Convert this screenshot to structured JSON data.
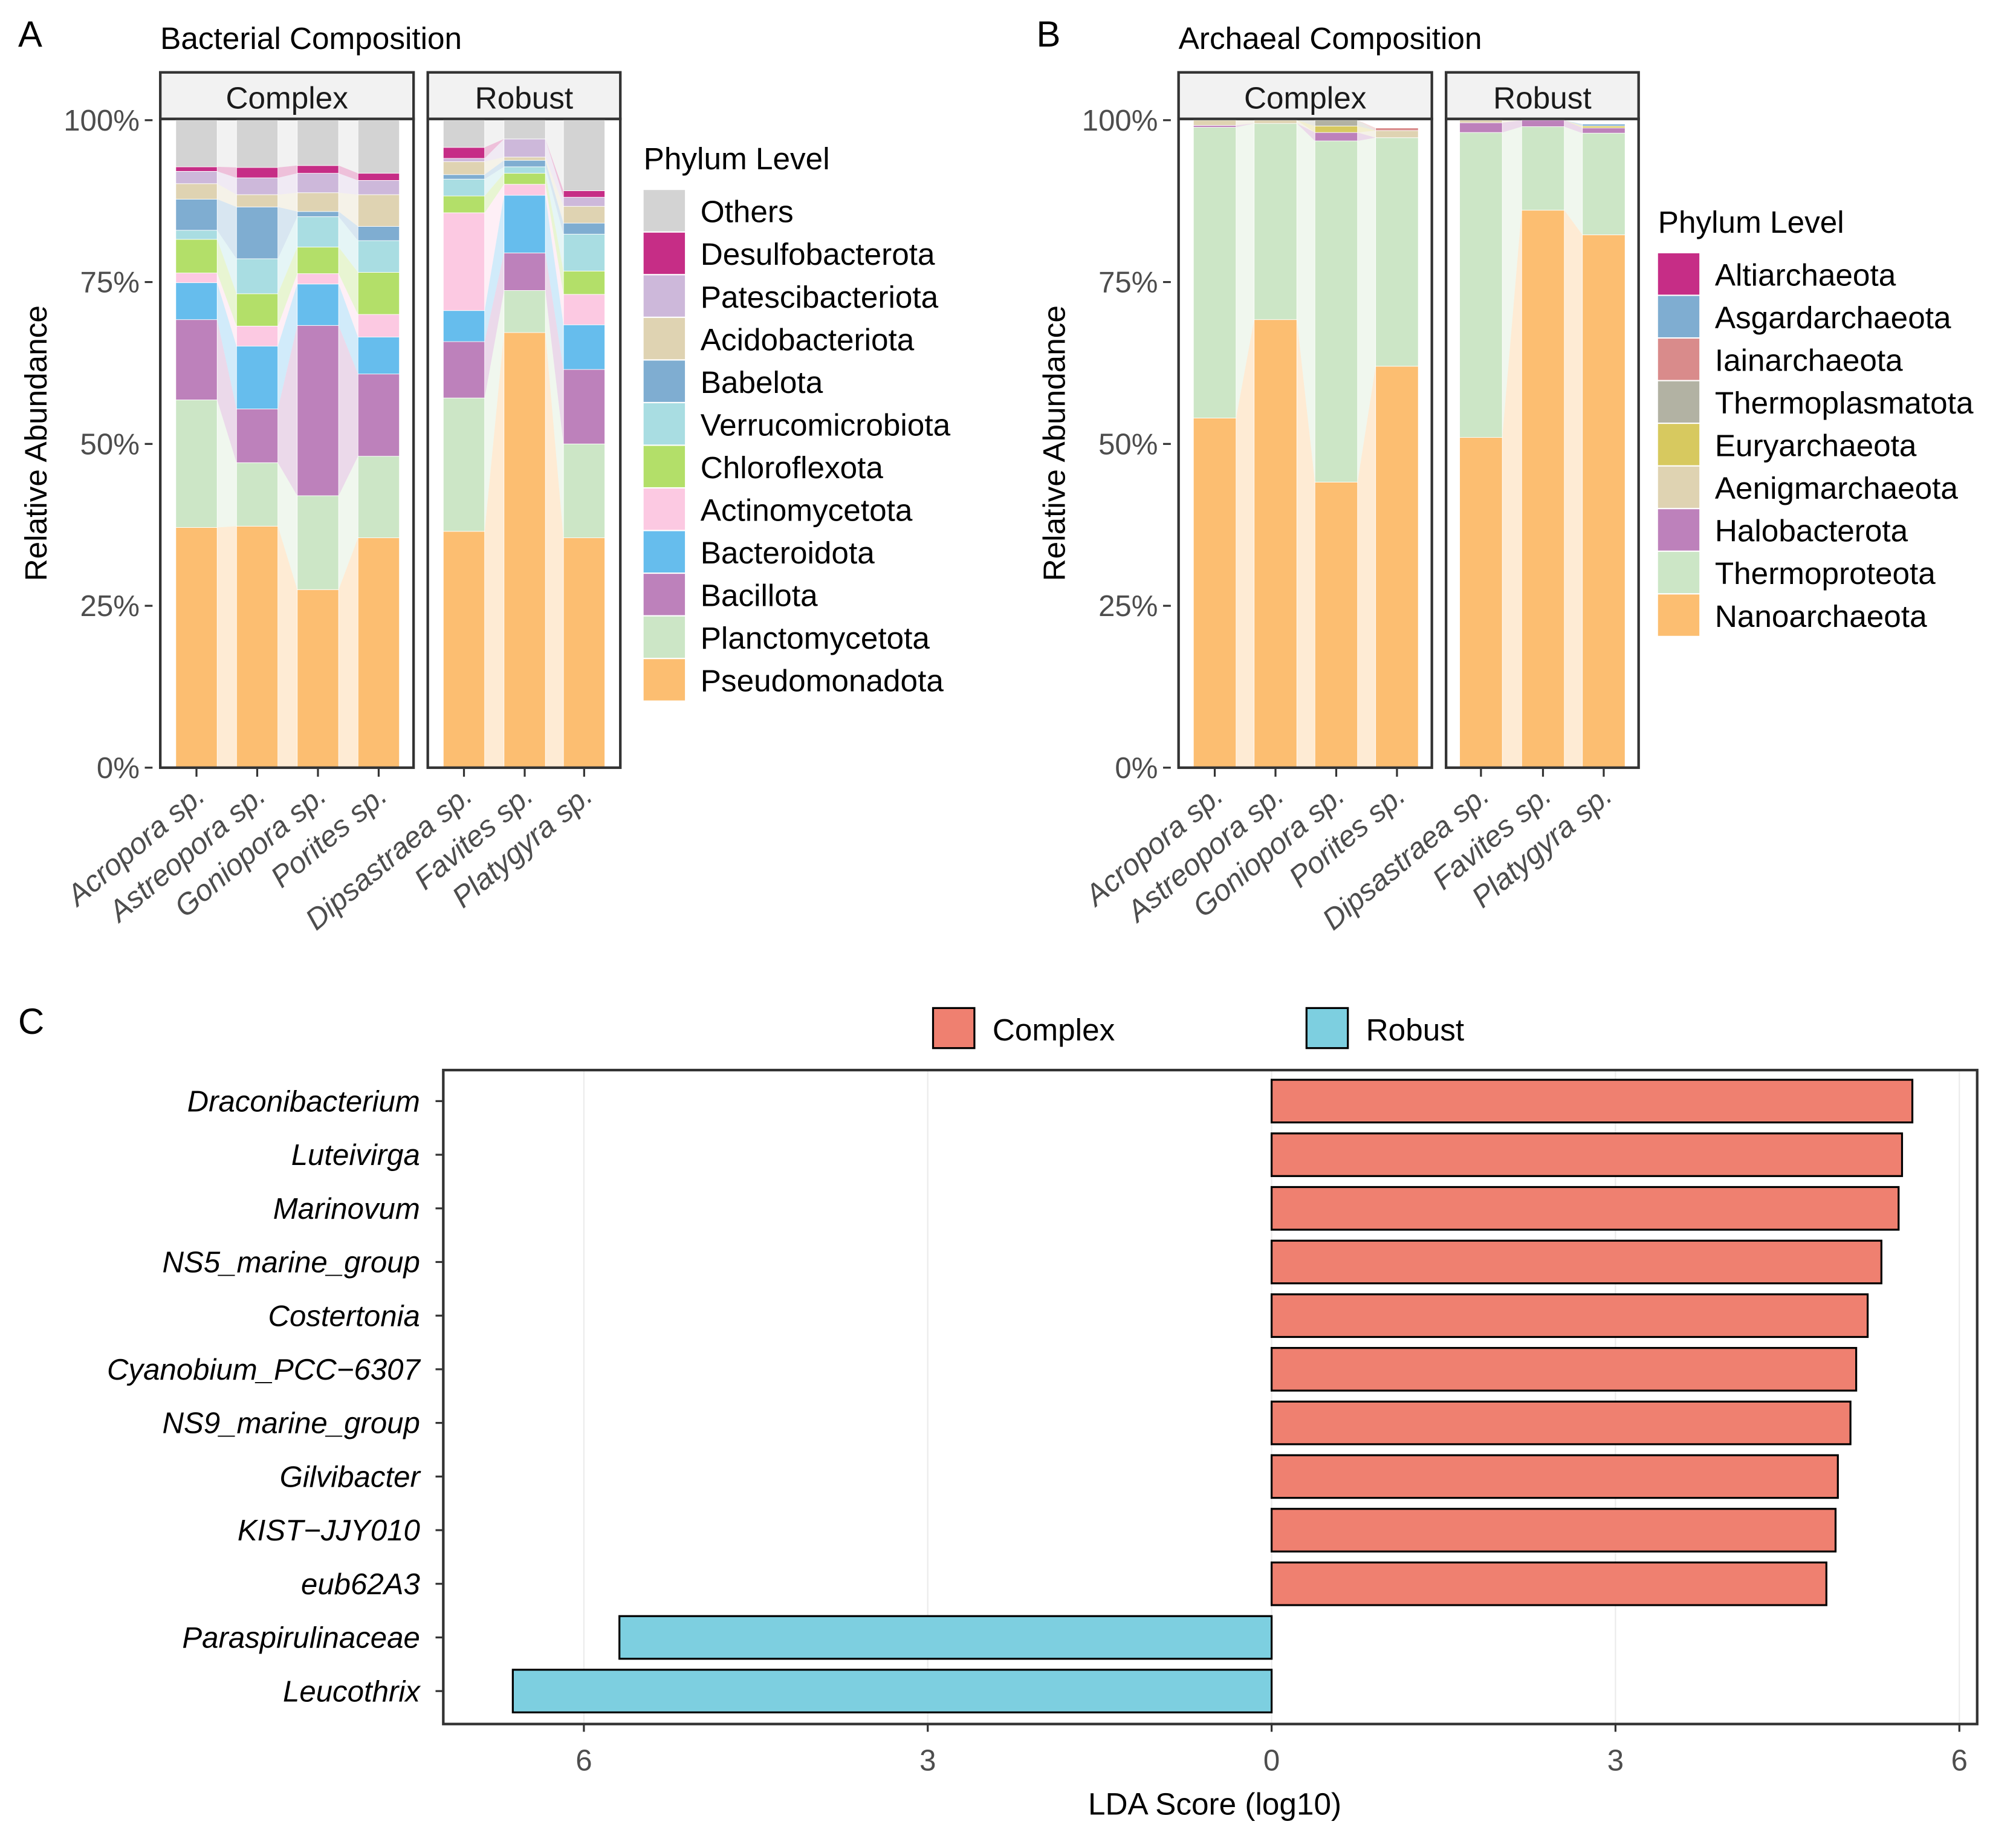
{
  "panel_labels": {
    "a": "A",
    "b": "B",
    "c": "C"
  },
  "chart_data": [
    {
      "type": "bar",
      "stacked": true,
      "alluvial_ribbons": true,
      "title": "Bacterial Composition",
      "ylabel": "Relative Abundance",
      "yticks": [
        "0%",
        "25%",
        "50%",
        "75%",
        "100%"
      ],
      "ylim": [
        0,
        100
      ],
      "facets": [
        {
          "name": "Complex",
          "categories": [
            "Acropora sp.",
            "Astreopora sp.",
            "Goniopora sp.",
            "Porites sp."
          ]
        },
        {
          "name": "Robust",
          "categories": [
            "Dipsastraea sp.",
            "Favites sp.",
            "Platygyra sp."
          ]
        }
      ],
      "legend_title": "Phylum Level",
      "legend_position": "right",
      "series": [
        {
          "name": "Pseudomonadota",
          "color": "#fcbe71",
          "values": [
            37.1,
            37.3,
            27.5,
            35.5,
            36.5,
            67.2,
            35.5
          ]
        },
        {
          "name": "Planctomycetota",
          "color": "#cce6c6",
          "values": [
            19.7,
            9.8,
            14.5,
            12.6,
            20.6,
            6.5,
            14.5
          ]
        },
        {
          "name": "Bacillota",
          "color": "#bd81bb",
          "values": [
            12.4,
            8.3,
            26.3,
            12.7,
            8.7,
            5.8,
            11.5
          ]
        },
        {
          "name": "Bacteroidota",
          "color": "#66bded",
          "values": [
            5.7,
            9.7,
            6.4,
            5.7,
            4.8,
            8.9,
            6.9
          ]
        },
        {
          "name": "Actinomycetota",
          "color": "#fcc9e2",
          "values": [
            1.5,
            3.1,
            1.6,
            3.5,
            15.1,
            1.7,
            4.7
          ]
        },
        {
          "name": "Chloroflexota",
          "color": "#b3df69",
          "values": [
            5.2,
            5.0,
            4.1,
            6.5,
            2.6,
            1.7,
            3.6
          ]
        },
        {
          "name": "Verrucomicrobiota",
          "color": "#a9dde2",
          "values": [
            1.4,
            5.4,
            4.7,
            4.9,
            2.6,
            1.0,
            5.7
          ]
        },
        {
          "name": "Babelota",
          "color": "#7fadd1",
          "values": [
            4.8,
            8.0,
            0.8,
            2.2,
            0.7,
            1.0,
            1.7
          ]
        },
        {
          "name": "Acidobacteriota",
          "color": "#dfd3b2",
          "values": [
            2.4,
            1.9,
            2.9,
            4.9,
            2.0,
            0.5,
            2.6
          ]
        },
        {
          "name": "Patescibacteriota",
          "color": "#cdb8da",
          "values": [
            1.9,
            2.6,
            3.0,
            2.2,
            0.5,
            2.8,
            1.4
          ]
        },
        {
          "name": "Desulfobacterota",
          "color": "#c62d86",
          "values": [
            0.7,
            1.6,
            1.2,
            1.1,
            1.7,
            0.0,
            1.0
          ]
        },
        {
          "name": "Others",
          "color": "#d3d3d3",
          "values": [
            7.2,
            7.3,
            7.0,
            8.2,
            4.2,
            2.9,
            10.9
          ]
        }
      ]
    },
    {
      "type": "bar",
      "stacked": true,
      "alluvial_ribbons": true,
      "title": "Archaeal Composition",
      "ylabel": "Relative Abundance",
      "yticks": [
        "0%",
        "25%",
        "50%",
        "75%",
        "100%"
      ],
      "ylim": [
        0,
        100
      ],
      "facets": [
        {
          "name": "Complex",
          "categories": [
            "Acropora sp.",
            "Astreopora sp.",
            "Goniopora sp.",
            "Porites sp."
          ]
        },
        {
          "name": "Robust",
          "categories": [
            "Dipsastraea sp.",
            "Favites sp.",
            "Platygyra sp."
          ]
        }
      ],
      "legend_title": "Phylum Level",
      "legend_position": "right",
      "series": [
        {
          "name": "Nanoarchaeota",
          "color": "#fcbe71",
          "values": [
            54.0,
            69.2,
            44.1,
            62.0,
            51.0,
            86.1,
            82.3
          ]
        },
        {
          "name": "Thermoproteota",
          "color": "#cce6c6",
          "values": [
            44.9,
            30.3,
            52.7,
            35.3,
            47.1,
            12.9,
            15.7
          ]
        },
        {
          "name": "Halobacterota",
          "color": "#bd81bb",
          "values": [
            0.3,
            0.0,
            1.3,
            0.0,
            1.5,
            1.0,
            0.8
          ]
        },
        {
          "name": "Aenigmarchaeota",
          "color": "#dfd3b2",
          "values": [
            0.8,
            0.5,
            0.0,
            1.1,
            0.4,
            0.0,
            0.0
          ]
        },
        {
          "name": "Euryarchaeota",
          "color": "#d7c95f",
          "values": [
            0.0,
            0.0,
            1.0,
            0.0,
            0.0,
            0.0,
            0.3
          ]
        },
        {
          "name": "Thermoplasmatota",
          "color": "#b2b2a3",
          "values": [
            0.0,
            0.0,
            0.9,
            0.0,
            0.0,
            0.0,
            0.0
          ]
        },
        {
          "name": "Iainarchaeota",
          "color": "#d98b8b",
          "values": [
            0.0,
            0.0,
            0.0,
            0.4,
            0.0,
            0.0,
            0.0
          ]
        },
        {
          "name": "Asgardarchaeota",
          "color": "#7fadd1",
          "values": [
            0.0,
            0.0,
            0.0,
            0.0,
            0.0,
            0.0,
            0.3
          ]
        },
        {
          "name": "Altiarchaeota",
          "color": "#c62d86",
          "values": [
            0.0,
            0.0,
            0.0,
            0.0,
            0.0,
            0.0,
            0.0
          ]
        }
      ]
    },
    {
      "type": "bar",
      "orientation": "horizontal",
      "xlabel": "LDA Score (log10)",
      "xlim": [
        -7.2,
        7.2
      ],
      "xticks": [
        {
          "value": -6,
          "label": "6"
        },
        {
          "value": -3,
          "label": "3"
        },
        {
          "value": 0,
          "label": "0"
        },
        {
          "value": 3,
          "label": "3"
        },
        {
          "value": 6,
          "label": "6"
        }
      ],
      "grid": true,
      "legend_position": "top",
      "groups": [
        {
          "name": "Complex",
          "color": "#ef8070"
        },
        {
          "name": "Robust",
          "color": "#7dcfe0"
        }
      ],
      "categories": [
        "Draconibacterium",
        "Luteivirga",
        "Marinovum",
        "NS5_marine_group",
        "Costertonia",
        "Cyanobium_PCC−6307",
        "NS9_marine_group",
        "Gilvibacter",
        "KIST−JJY010",
        "eub62A3",
        "Paraspirulinaceae",
        "Leucothrix"
      ],
      "values": [
        5.59,
        5.5,
        5.47,
        5.32,
        5.2,
        5.1,
        5.05,
        4.94,
        4.92,
        4.84,
        -5.69,
        -6.62
      ],
      "group_of": [
        "Complex",
        "Complex",
        "Complex",
        "Complex",
        "Complex",
        "Complex",
        "Complex",
        "Complex",
        "Complex",
        "Complex",
        "Robust",
        "Robust"
      ]
    }
  ]
}
